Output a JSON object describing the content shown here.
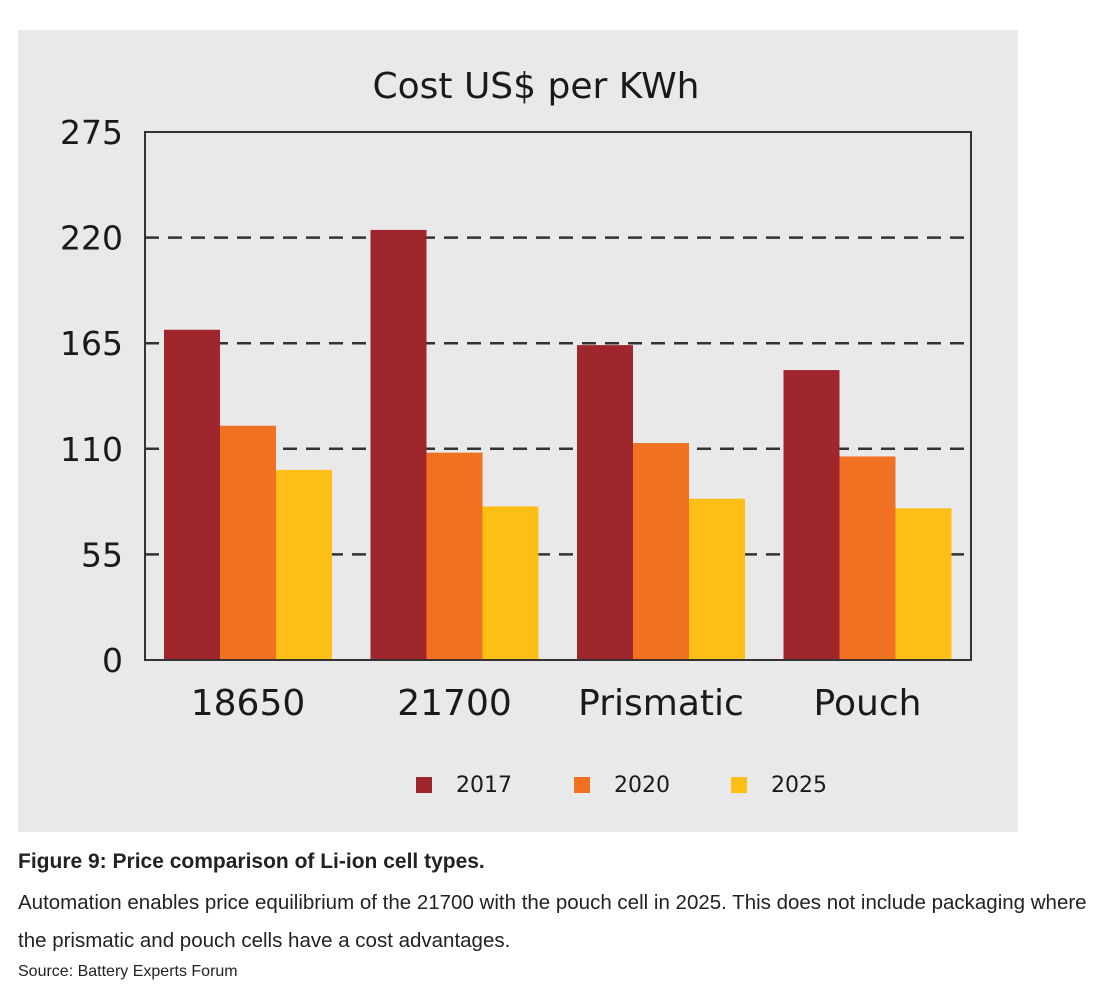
{
  "chart_data": {
    "type": "bar",
    "title": "Cost US$ per KWh",
    "categories": [
      "18650",
      "21700",
      "Prismatic",
      "Pouch"
    ],
    "series": [
      {
        "name": "2017",
        "color": "#9e262c",
        "values": [
          172,
          224,
          164,
          151
        ]
      },
      {
        "name": "2020",
        "color": "#f07122",
        "values": [
          122,
          108,
          113,
          106
        ]
      },
      {
        "name": "2025",
        "color": "#fdbe15",
        "values": [
          99,
          80,
          84,
          79
        ]
      }
    ],
    "ylim": [
      0,
      275
    ],
    "yticks": [
      0,
      55,
      110,
      165,
      220,
      275
    ],
    "grid": "dashed horizontal",
    "legend": "bottom-center"
  },
  "caption": {
    "title": "Figure 9: Price comparison of Li-ion cell types.",
    "description": "Automation enables price equilibrium of the 21700 with the pouch cell in 2025. This does not include packaging where the prismatic and pouch cells have a cost advantages.",
    "source": "Source: Battery Experts Forum"
  }
}
